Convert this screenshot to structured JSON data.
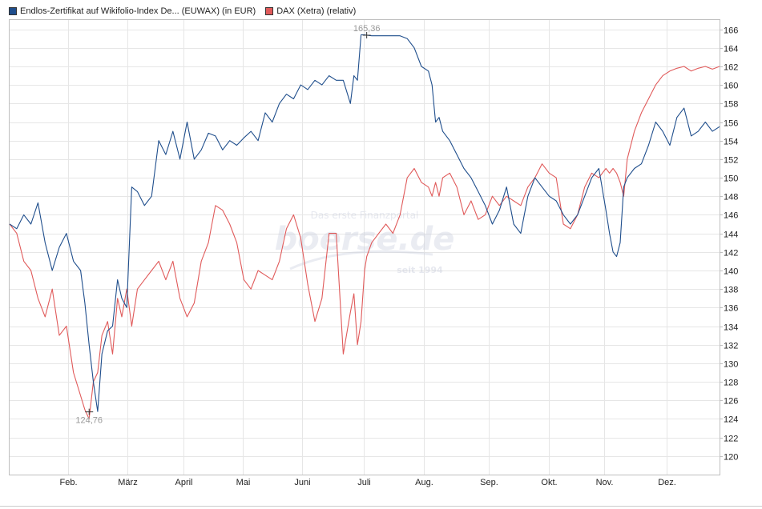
{
  "colors": {
    "series1": "#1f4e8c",
    "series2": "#e05a5a",
    "grid": "#e6e6e6",
    "axis": "#bfbfbf"
  },
  "watermark": {
    "tagline": "Das erste Finanzportal",
    "logo": "boerse.de",
    "year": "seit 1994"
  },
  "chart_data": {
    "type": "line",
    "legend_position": "top-left",
    "y_axis_side": "right",
    "grid": true,
    "ylim": [
      118,
      167
    ],
    "y_ticks": [
      120,
      122,
      124,
      126,
      128,
      130,
      132,
      134,
      136,
      138,
      140,
      142,
      144,
      146,
      148,
      150,
      152,
      154,
      156,
      158,
      160,
      162,
      164,
      166
    ],
    "x_ticks": [
      {
        "label": "Feb.",
        "t": 0.082
      },
      {
        "label": "März",
        "t": 0.166
      },
      {
        "label": "April",
        "t": 0.245
      },
      {
        "label": "Mai",
        "t": 0.329
      },
      {
        "label": "Juni",
        "t": 0.412
      },
      {
        "label": "Juli",
        "t": 0.499
      },
      {
        "label": "Aug.",
        "t": 0.584
      },
      {
        "label": "Sep.",
        "t": 0.675
      },
      {
        "label": "Okt.",
        "t": 0.76
      },
      {
        "label": "Nov.",
        "t": 0.838
      },
      {
        "label": "Dez.",
        "t": 0.925
      }
    ],
    "annotations": [
      {
        "label": "165,36",
        "t": 0.503,
        "y": 165.36,
        "position": "above"
      },
      {
        "label": "124,76",
        "t": 0.112,
        "y": 124.76,
        "position": "below"
      }
    ],
    "series": [
      {
        "name": "Endlos-Zertifikat auf Wikifolio-Index De... (EUWAX) (in EUR)",
        "color": "#1f4e8c",
        "t": [
          0,
          0.01,
          0.02,
          0.03,
          0.04,
          0.05,
          0.06,
          0.07,
          0.08,
          0.09,
          0.1,
          0.106,
          0.112,
          0.118,
          0.124,
          0.13,
          0.138,
          0.145,
          0.152,
          0.158,
          0.165,
          0.172,
          0.18,
          0.19,
          0.2,
          0.21,
          0.22,
          0.23,
          0.24,
          0.25,
          0.26,
          0.27,
          0.28,
          0.29,
          0.3,
          0.31,
          0.32,
          0.33,
          0.34,
          0.35,
          0.36,
          0.37,
          0.38,
          0.39,
          0.4,
          0.41,
          0.42,
          0.43,
          0.44,
          0.45,
          0.46,
          0.47,
          0.48,
          0.485,
          0.49,
          0.495,
          0.5,
          0.503,
          0.51,
          0.52,
          0.53,
          0.54,
          0.55,
          0.56,
          0.57,
          0.58,
          0.59,
          0.595,
          0.6,
          0.605,
          0.61,
          0.62,
          0.63,
          0.64,
          0.65,
          0.66,
          0.67,
          0.68,
          0.69,
          0.7,
          0.71,
          0.72,
          0.73,
          0.74,
          0.75,
          0.76,
          0.77,
          0.78,
          0.79,
          0.8,
          0.81,
          0.82,
          0.83,
          0.84,
          0.845,
          0.85,
          0.855,
          0.86,
          0.865,
          0.87,
          0.88,
          0.89,
          0.9,
          0.91,
          0.92,
          0.93,
          0.94,
          0.95,
          0.96,
          0.97,
          0.98,
          0.99,
          1.0
        ],
        "values": [
          145.0,
          144.5,
          146.0,
          145.0,
          147.3,
          143.0,
          140.0,
          142.5,
          144.0,
          141.0,
          140.0,
          136.5,
          132.0,
          128.0,
          124.8,
          131.0,
          133.5,
          134.0,
          139.0,
          137.0,
          136.0,
          149.0,
          148.5,
          147.0,
          148.0,
          154.0,
          152.5,
          155.0,
          152.0,
          156.0,
          152.0,
          153.0,
          154.8,
          154.5,
          153.0,
          154.0,
          153.5,
          154.3,
          155.0,
          154.0,
          157.0,
          156.0,
          158.0,
          159.0,
          158.5,
          160.0,
          159.5,
          160.5,
          160.0,
          161.0,
          160.5,
          160.5,
          158.0,
          161.0,
          160.5,
          165.4,
          165.4,
          165.36,
          165.3,
          165.3,
          165.3,
          165.3,
          165.3,
          165.0,
          164.0,
          162.0,
          161.5,
          160.0,
          156.0,
          156.5,
          155.0,
          154.0,
          152.5,
          151.0,
          150.0,
          148.5,
          147.0,
          145.0,
          146.5,
          149.0,
          145.0,
          144.0,
          148.0,
          150.0,
          149.0,
          148.0,
          147.5,
          146.0,
          145.0,
          146.0,
          148.0,
          150.0,
          151.0,
          146.5,
          144.0,
          142.0,
          141.5,
          143.0,
          149.0,
          150.0,
          151.0,
          151.5,
          153.5,
          156.0,
          155.0,
          153.5,
          156.5,
          157.5,
          154.5,
          155.0,
          156.0,
          155.0,
          155.5
        ]
      },
      {
        "name": "DAX (Xetra) (relativ)",
        "color": "#e05a5a",
        "t": [
          0,
          0.01,
          0.02,
          0.03,
          0.04,
          0.05,
          0.06,
          0.07,
          0.08,
          0.09,
          0.1,
          0.106,
          0.112,
          0.118,
          0.124,
          0.13,
          0.138,
          0.145,
          0.152,
          0.158,
          0.165,
          0.172,
          0.18,
          0.19,
          0.2,
          0.21,
          0.22,
          0.23,
          0.24,
          0.25,
          0.26,
          0.27,
          0.28,
          0.29,
          0.3,
          0.31,
          0.32,
          0.33,
          0.34,
          0.35,
          0.36,
          0.37,
          0.38,
          0.39,
          0.4,
          0.41,
          0.42,
          0.43,
          0.44,
          0.45,
          0.46,
          0.47,
          0.48,
          0.485,
          0.49,
          0.495,
          0.5,
          0.503,
          0.51,
          0.52,
          0.53,
          0.54,
          0.55,
          0.56,
          0.57,
          0.58,
          0.59,
          0.595,
          0.6,
          0.605,
          0.61,
          0.62,
          0.63,
          0.64,
          0.65,
          0.66,
          0.67,
          0.68,
          0.69,
          0.7,
          0.71,
          0.72,
          0.73,
          0.74,
          0.75,
          0.76,
          0.77,
          0.78,
          0.79,
          0.8,
          0.81,
          0.82,
          0.83,
          0.84,
          0.845,
          0.85,
          0.855,
          0.86,
          0.865,
          0.87,
          0.88,
          0.89,
          0.9,
          0.91,
          0.92,
          0.93,
          0.94,
          0.95,
          0.96,
          0.97,
          0.98,
          0.99,
          1.0
        ],
        "values": [
          145.0,
          144.0,
          141.0,
          140.0,
          137.0,
          135.0,
          138.0,
          133.0,
          134.0,
          129.0,
          126.5,
          125.0,
          124.0,
          128.0,
          129.0,
          133.0,
          134.5,
          131.0,
          137.0,
          135.0,
          138.0,
          134.0,
          138.0,
          139.0,
          140.0,
          141.0,
          139.0,
          141.0,
          137.0,
          135.0,
          136.5,
          141.0,
          143.0,
          147.0,
          146.5,
          145.0,
          143.0,
          139.0,
          138.0,
          140.0,
          139.5,
          139.0,
          141.0,
          144.5,
          146.0,
          143.5,
          138.5,
          134.5,
          137.0,
          144.0,
          144.0,
          131.0,
          135.5,
          137.5,
          132.0,
          134.5,
          140.0,
          141.5,
          143.0,
          144.0,
          145.0,
          144.0,
          146.0,
          150.0,
          151.0,
          149.5,
          149.0,
          148.0,
          149.5,
          148.0,
          150.0,
          150.5,
          149.0,
          146.0,
          147.5,
          145.5,
          146.0,
          148.0,
          147.0,
          148.0,
          147.5,
          147.0,
          149.0,
          150.0,
          151.5,
          150.5,
          150.0,
          145.0,
          144.5,
          146.0,
          149.0,
          150.5,
          150.0,
          151.0,
          150.5,
          151.0,
          150.5,
          149.5,
          148.0,
          152.0,
          155.0,
          157.0,
          158.5,
          160.0,
          161.0,
          161.5,
          161.8,
          162.0,
          161.5,
          161.8,
          162.0,
          161.7,
          162.0
        ]
      }
    ]
  }
}
